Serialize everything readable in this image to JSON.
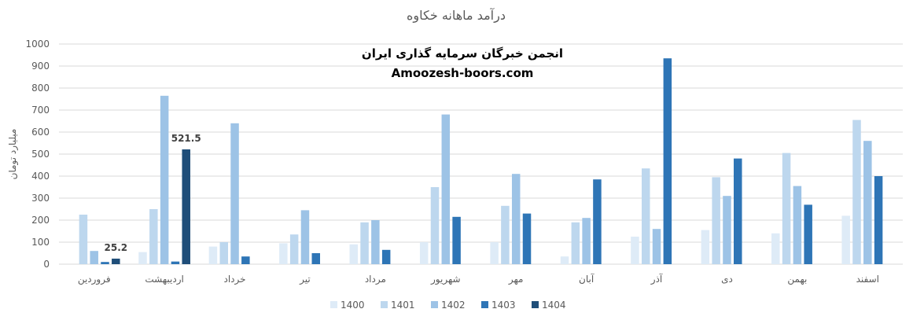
{
  "chart_data": {
    "type": "bar",
    "title": "درآمد ماهانه خکاوه",
    "ylabel": "میلیارد تومان",
    "ylim": [
      0,
      1000
    ],
    "yticks": [
      0,
      100,
      200,
      300,
      400,
      500,
      600,
      700,
      800,
      900,
      1000
    ],
    "grid": true,
    "legend_position": "bottom",
    "categories": [
      "فروردین",
      "اردیبهشت",
      "خرداد",
      "تیر",
      "مرداد",
      "شهریور",
      "مهر",
      "آبان",
      "آذر",
      "دی",
      "بهمن",
      "اسفند"
    ],
    "series": [
      {
        "name": "1400",
        "color": "#deebf7",
        "values": [
          null,
          55,
          80,
          95,
          90,
          100,
          100,
          35,
          125,
          155,
          140,
          220
        ]
      },
      {
        "name": "1401",
        "color": "#bdd7ee",
        "values": [
          225,
          250,
          100,
          135,
          190,
          350,
          265,
          190,
          435,
          395,
          505,
          655
        ]
      },
      {
        "name": "1402",
        "color": "#9dc3e6",
        "values": [
          60,
          765,
          640,
          245,
          200,
          680,
          410,
          210,
          160,
          310,
          355,
          560
        ]
      },
      {
        "name": "1403",
        "color": "#2e75b6",
        "values": [
          10,
          12,
          35,
          50,
          65,
          215,
          230,
          385,
          935,
          480,
          270,
          400
        ]
      },
      {
        "name": "1404",
        "color": "#1f4e79",
        "values": [
          25.2,
          521.5,
          null,
          null,
          null,
          null,
          null,
          null,
          null,
          null,
          null,
          null
        ]
      }
    ],
    "data_labels": [
      {
        "series": "1404",
        "category": "فروردین",
        "text": "25.2"
      },
      {
        "series": "1404",
        "category": "اردیبهشت",
        "text": "521.5"
      }
    ]
  },
  "watermark": {
    "line1": "انجمن خبرگان سرمایه گذاری ایران",
    "line2": "Amoozesh-boors.com"
  },
  "colors": {
    "grid": "#d9d9d9",
    "text": "#595959"
  }
}
